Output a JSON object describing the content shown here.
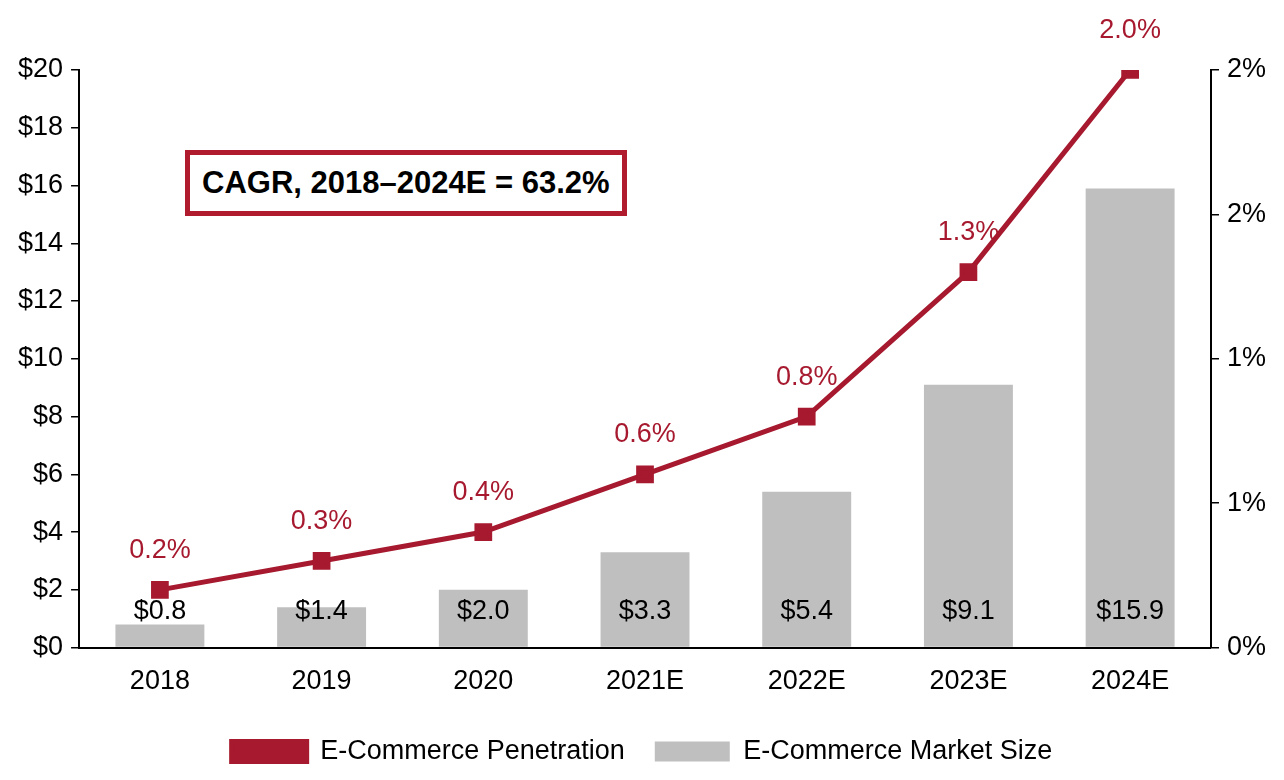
{
  "chart_data": {
    "type": "bar",
    "categories": [
      "2018",
      "2019",
      "2020",
      "2021E",
      "2022E",
      "2023E",
      "2024E"
    ],
    "series": [
      {
        "name": "E-Commerce Market Size",
        "type": "bar",
        "color": "#bfbfbf",
        "values": [
          0.8,
          1.4,
          2.0,
          3.3,
          5.4,
          9.1,
          15.9
        ],
        "value_labels": [
          "$0.8",
          "$1.4",
          "$2.0",
          "$3.3",
          "$5.4",
          "$9.1",
          "$15.9"
        ]
      },
      {
        "name": "E-Commerce Penetration",
        "type": "line",
        "axis": "y2",
        "color": "#a6192e",
        "marker": "square",
        "values": [
          0.2,
          0.3,
          0.4,
          0.6,
          0.8,
          1.3,
          2.0
        ],
        "value_labels": [
          "0.2%",
          "0.3%",
          "0.4%",
          "0.6%",
          "0.8%",
          "1.3%",
          "2.0%"
        ]
      }
    ],
    "ylim": [
      0,
      20
    ],
    "yticks": [
      {
        "value": 0,
        "label": "$0"
      },
      {
        "value": 2,
        "label": "$2"
      },
      {
        "value": 4,
        "label": "$4"
      },
      {
        "value": 6,
        "label": "$6"
      },
      {
        "value": 8,
        "label": "$8"
      },
      {
        "value": 10,
        "label": "$10"
      },
      {
        "value": 12,
        "label": "$12"
      },
      {
        "value": 14,
        "label": "$14"
      },
      {
        "value": 16,
        "label": "$16"
      },
      {
        "value": 18,
        "label": "$18"
      },
      {
        "value": 20,
        "label": "$20"
      }
    ],
    "y2lim": [
      0,
      2
    ],
    "y2ticks": [
      {
        "value": 0,
        "label": "0%"
      },
      {
        "value": 0.5,
        "label": "1%"
      },
      {
        "value": 1,
        "label": "1%"
      },
      {
        "value": 1.5,
        "label": "2%"
      },
      {
        "value": 2,
        "label": "2%"
      }
    ],
    "annotations": [
      {
        "text": "CAGR, 2018–2024E = 63.2%"
      }
    ],
    "data_labels": true,
    "grid": false,
    "legend": "bottom"
  }
}
